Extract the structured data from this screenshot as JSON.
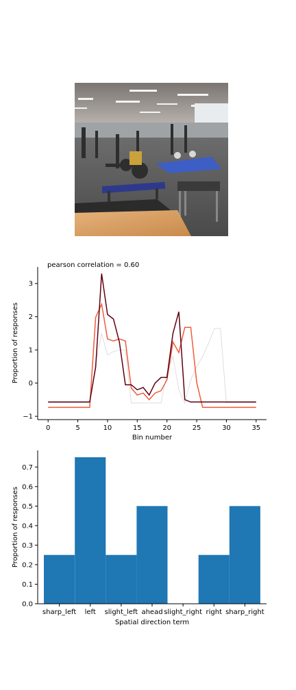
{
  "figure": {
    "colors": {
      "background": "#ffffff",
      "bar": "#1f77b4",
      "line_model": "#5c0010",
      "line_human": "#f05a3c",
      "line_faint": "#dddddd"
    }
  },
  "photo": {
    "description_icon": "gym-photo"
  },
  "chart_data": [
    {
      "type": "line",
      "title": "pearson correlation = 0.60",
      "xlabel": "Bin number",
      "ylabel": "Proportion of responses",
      "xlim": [
        -1.75,
        36.75
      ],
      "ylim": [
        -1.1,
        3.5
      ],
      "xticks": [
        0,
        5,
        10,
        15,
        20,
        25,
        30,
        35
      ],
      "yticks": [
        -1,
        0,
        1,
        2,
        3
      ],
      "grid": false,
      "x": [
        0,
        1,
        2,
        3,
        4,
        5,
        6,
        7,
        8,
        9,
        10,
        11,
        12,
        13,
        14,
        15,
        16,
        17,
        18,
        19,
        20,
        21,
        22,
        23,
        24,
        25,
        26,
        27,
        28,
        29,
        30,
        31,
        32,
        33,
        34,
        35
      ],
      "series": [
        {
          "color": "#dddddd",
          "values": [
            -0.6,
            -0.6,
            -0.6,
            -0.6,
            -0.6,
            -0.6,
            -0.6,
            -0.6,
            0.6,
            1.5,
            0.85,
            0.95,
            1.0,
            1.0,
            -0.6,
            -0.6,
            -0.6,
            -0.6,
            -0.6,
            -0.6,
            0.3,
            0.8,
            -0.2,
            -0.6,
            0.1,
            0.5,
            0.8,
            1.2,
            1.65,
            1.65,
            -0.6,
            -0.6,
            -0.6,
            -0.6,
            -0.6,
            -0.6
          ]
        },
        {
          "color": "#f05a3c",
          "values": [
            -0.73,
            -0.73,
            -0.73,
            -0.73,
            -0.73,
            -0.73,
            -0.73,
            -0.73,
            1.98,
            2.38,
            1.33,
            1.27,
            1.33,
            1.27,
            -0.15,
            -0.36,
            -0.3,
            -0.5,
            -0.3,
            -0.23,
            0.1,
            1.24,
            0.92,
            1.68,
            1.68,
            0.02,
            -0.73,
            -0.73,
            -0.73,
            -0.73,
            -0.73,
            -0.73,
            -0.73,
            -0.73,
            -0.73,
            -0.73
          ]
        },
        {
          "color": "#5c0010",
          "values": [
            -0.57,
            -0.57,
            -0.57,
            -0.57,
            -0.57,
            -0.57,
            -0.57,
            -0.57,
            0.48,
            3.3,
            2.07,
            1.93,
            1.23,
            -0.05,
            -0.05,
            -0.2,
            -0.13,
            -0.36,
            0.0,
            0.17,
            0.17,
            1.5,
            2.15,
            -0.5,
            -0.57,
            -0.57,
            -0.57,
            -0.57,
            -0.57,
            -0.57,
            -0.57,
            -0.57,
            -0.57,
            -0.57,
            -0.57,
            -0.57
          ]
        }
      ]
    },
    {
      "type": "bar",
      "xlabel": "Spatial direction term",
      "ylabel": "Proportion of responses",
      "ylim": [
        0,
        0.785
      ],
      "yticks": [
        "0.0",
        "0.1",
        "0.2",
        "0.3",
        "0.4",
        "0.5",
        "0.6",
        "0.7"
      ],
      "categories": [
        "sharp_left",
        "left",
        "slight_left",
        "ahead",
        "slight_right",
        "right",
        "sharp_right"
      ],
      "values": [
        0.25,
        0.75,
        0.25,
        0.5,
        0.0,
        0.25,
        0.5
      ],
      "color": "#1f77b4",
      "grid": false
    }
  ]
}
